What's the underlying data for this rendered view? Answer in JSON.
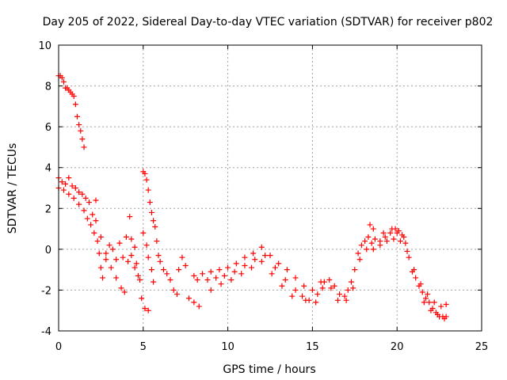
{
  "chart_data": {
    "type": "scatter",
    "title": "Day 205 of 2022, Sidereal Day-to-day VTEC variation (SDTVAR) for receiver p802",
    "xlabel": "GPS time / hours",
    "ylabel": "SDTVAR / TECUs",
    "xlim": [
      0,
      25
    ],
    "ylim": [
      -4,
      10
    ],
    "xticks": [
      "0",
      "5",
      "10",
      "15",
      "20",
      "25"
    ],
    "yticks": [
      "-4",
      "-2",
      "0",
      "2",
      "4",
      "6",
      "8",
      "10"
    ],
    "grid": true,
    "marker": "+",
    "color": "#ff0000",
    "series": [
      {
        "name": "p802",
        "points": [
          [
            0.0,
            8.5
          ],
          [
            0.1,
            8.5
          ],
          [
            0.2,
            8.4
          ],
          [
            0.3,
            8.2
          ],
          [
            0.4,
            7.9
          ],
          [
            0.5,
            7.9
          ],
          [
            0.6,
            7.8
          ],
          [
            0.7,
            7.7
          ],
          [
            0.8,
            7.6
          ],
          [
            0.9,
            7.5
          ],
          [
            1.0,
            7.1
          ],
          [
            1.1,
            6.5
          ],
          [
            1.2,
            6.1
          ],
          [
            1.3,
            5.8
          ],
          [
            1.4,
            5.4
          ],
          [
            1.5,
            5.0
          ],
          [
            0.0,
            3.5
          ],
          [
            0.2,
            3.3
          ],
          [
            0.4,
            3.2
          ],
          [
            0.6,
            3.5
          ],
          [
            0.8,
            3.1
          ],
          [
            1.0,
            3.0
          ],
          [
            1.2,
            2.8
          ],
          [
            1.4,
            2.7
          ],
          [
            1.6,
            2.5
          ],
          [
            1.8,
            2.3
          ],
          [
            2.0,
            1.7
          ],
          [
            2.2,
            1.4
          ],
          [
            0.0,
            3.0
          ],
          [
            0.3,
            2.9
          ],
          [
            0.6,
            2.7
          ],
          [
            0.9,
            2.5
          ],
          [
            1.2,
            2.2
          ],
          [
            1.5,
            1.9
          ],
          [
            1.7,
            1.5
          ],
          [
            1.9,
            1.2
          ],
          [
            2.1,
            0.8
          ],
          [
            2.3,
            0.4
          ],
          [
            2.4,
            -0.2
          ],
          [
            2.5,
            -0.9
          ],
          [
            2.6,
            -1.4
          ],
          [
            2.8,
            -0.5
          ],
          [
            3.0,
            0.2
          ],
          [
            3.2,
            0.0
          ],
          [
            3.4,
            -0.5
          ],
          [
            3.6,
            0.3
          ],
          [
            3.8,
            -0.4
          ],
          [
            4.0,
            0.6
          ],
          [
            4.2,
            1.6
          ],
          [
            4.3,
            0.5
          ],
          [
            4.5,
            -0.9
          ],
          [
            4.7,
            -1.3
          ],
          [
            4.9,
            -2.4
          ],
          [
            5.1,
            -2.9
          ],
          [
            5.3,
            -3.0
          ],
          [
            2.2,
            2.4
          ],
          [
            2.5,
            0.6
          ],
          [
            2.8,
            -0.2
          ],
          [
            3.1,
            -0.9
          ],
          [
            3.4,
            -1.4
          ],
          [
            3.7,
            -1.9
          ],
          [
            3.9,
            -2.1
          ],
          [
            4.1,
            -0.6
          ],
          [
            4.3,
            -0.3
          ],
          [
            4.5,
            0.1
          ],
          [
            4.6,
            -0.7
          ],
          [
            4.8,
            -1.5
          ],
          [
            5.0,
            3.8
          ],
          [
            5.1,
            3.7
          ],
          [
            5.2,
            3.4
          ],
          [
            5.3,
            2.9
          ],
          [
            5.4,
            2.3
          ],
          [
            5.5,
            1.8
          ],
          [
            5.6,
            1.4
          ],
          [
            5.7,
            1.1
          ],
          [
            5.8,
            0.4
          ],
          [
            5.9,
            -0.3
          ],
          [
            5.0,
            0.8
          ],
          [
            5.2,
            0.2
          ],
          [
            5.3,
            -0.4
          ],
          [
            5.5,
            -1.0
          ],
          [
            5.6,
            -1.6
          ],
          [
            6.0,
            -0.6
          ],
          [
            6.2,
            -1.0
          ],
          [
            6.4,
            -1.2
          ],
          [
            6.6,
            -1.5
          ],
          [
            6.8,
            -2.0
          ],
          [
            7.0,
            -2.2
          ],
          [
            7.1,
            -1.0
          ],
          [
            7.3,
            -0.4
          ],
          [
            7.5,
            -0.8
          ],
          [
            7.7,
            -2.4
          ],
          [
            8.0,
            -2.6
          ],
          [
            8.3,
            -2.8
          ],
          [
            8.0,
            -1.3
          ],
          [
            8.5,
            -1.2
          ],
          [
            9.0,
            -1.1
          ],
          [
            9.5,
            -1.0
          ],
          [
            10.0,
            -0.9
          ],
          [
            10.5,
            -0.7
          ],
          [
            11.0,
            -0.4
          ],
          [
            11.5,
            -0.2
          ],
          [
            12.0,
            0.1
          ],
          [
            12.5,
            -0.3
          ],
          [
            13.0,
            -0.7
          ],
          [
            13.5,
            -1.0
          ],
          [
            14.0,
            -1.4
          ],
          [
            14.5,
            -1.8
          ],
          [
            8.2,
            -1.5
          ],
          [
            8.8,
            -1.5
          ],
          [
            9.3,
            -1.4
          ],
          [
            9.8,
            -1.3
          ],
          [
            10.4,
            -1.1
          ],
          [
            11.0,
            -0.8
          ],
          [
            11.6,
            -0.5
          ],
          [
            12.2,
            -0.3
          ],
          [
            12.8,
            -0.9
          ],
          [
            13.4,
            -1.5
          ],
          [
            14.0,
            -2.0
          ],
          [
            14.6,
            -2.5
          ],
          [
            9.0,
            -2.0
          ],
          [
            9.6,
            -1.7
          ],
          [
            10.2,
            -1.5
          ],
          [
            10.8,
            -1.2
          ],
          [
            11.4,
            -0.9
          ],
          [
            12.0,
            -0.6
          ],
          [
            12.6,
            -1.2
          ],
          [
            13.2,
            -1.8
          ],
          [
            13.8,
            -2.3
          ],
          [
            14.4,
            -2.3
          ],
          [
            14.8,
            -2.5
          ],
          [
            15.0,
            -2.0
          ],
          [
            15.3,
            -2.2
          ],
          [
            15.5,
            -1.6
          ],
          [
            15.7,
            -1.6
          ],
          [
            16.0,
            -1.5
          ],
          [
            16.3,
            -1.8
          ],
          [
            16.6,
            -2.2
          ],
          [
            16.9,
            -2.3
          ],
          [
            17.1,
            -2.0
          ],
          [
            17.3,
            -1.6
          ],
          [
            17.5,
            -1.0
          ],
          [
            17.7,
            -0.2
          ],
          [
            17.9,
            0.2
          ],
          [
            18.1,
            0.4
          ],
          [
            18.3,
            0.6
          ],
          [
            18.5,
            0.3
          ],
          [
            18.7,
            0.5
          ],
          [
            19.0,
            0.4
          ],
          [
            19.3,
            0.6
          ],
          [
            19.6,
            0.8
          ],
          [
            19.9,
            1.0
          ],
          [
            20.1,
            0.9
          ],
          [
            20.3,
            0.7
          ],
          [
            20.5,
            0.3
          ],
          [
            20.7,
            -0.4
          ],
          [
            20.9,
            -1.1
          ],
          [
            21.1,
            -1.4
          ],
          [
            21.3,
            -1.8
          ],
          [
            21.5,
            -2.1
          ],
          [
            21.7,
            -2.4
          ],
          [
            21.9,
            -2.6
          ],
          [
            22.1,
            -2.9
          ],
          [
            22.3,
            -3.1
          ],
          [
            22.5,
            -3.3
          ],
          [
            22.7,
            -3.3
          ],
          [
            22.9,
            -3.3
          ],
          [
            15.2,
            -2.6
          ],
          [
            15.6,
            -1.9
          ],
          [
            16.1,
            -1.9
          ],
          [
            16.5,
            -2.5
          ],
          [
            17.0,
            -2.5
          ],
          [
            17.4,
            -1.9
          ],
          [
            17.8,
            -0.5
          ],
          [
            18.2,
            0.0
          ],
          [
            18.6,
            0.0
          ],
          [
            19.0,
            0.2
          ],
          [
            19.4,
            0.4
          ],
          [
            19.8,
            0.5
          ],
          [
            20.2,
            0.4
          ],
          [
            20.6,
            -0.1
          ],
          [
            21.0,
            -1.0
          ],
          [
            21.4,
            -1.7
          ],
          [
            21.8,
            -2.2
          ],
          [
            22.2,
            -2.6
          ],
          [
            22.6,
            -2.8
          ],
          [
            22.9,
            -2.7
          ],
          [
            18.4,
            1.2
          ],
          [
            18.6,
            1.0
          ],
          [
            19.2,
            0.8
          ],
          [
            19.7,
            1.0
          ],
          [
            20.0,
            0.8
          ],
          [
            20.4,
            0.6
          ],
          [
            21.6,
            -2.6
          ],
          [
            22.0,
            -3.0
          ],
          [
            22.4,
            -3.2
          ],
          [
            22.8,
            -3.4
          ]
        ]
      }
    ]
  }
}
